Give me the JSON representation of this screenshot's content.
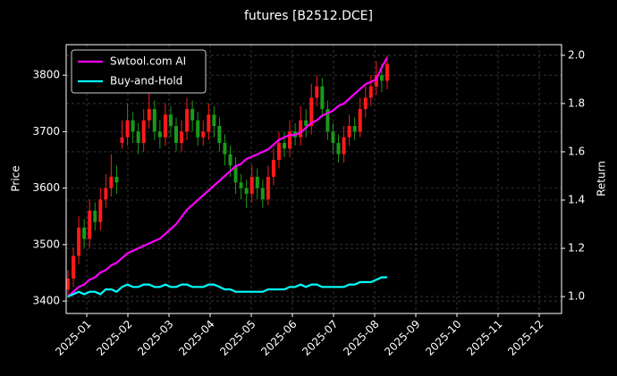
{
  "chart_data": {
    "type": "candlestick",
    "title": "futures [B2512.DCE]",
    "ylabel": "Price",
    "y2label": "Return",
    "xticks": [
      "2025-01",
      "2025-02",
      "2025-03",
      "2025-04",
      "2025-05",
      "2025-06",
      "2025-07",
      "2025-08",
      "2025-09",
      "2025-10",
      "2025-11",
      "2025-12"
    ],
    "ylim": [
      3378,
      3854
    ],
    "yticks": [
      3400,
      3500,
      3600,
      3700,
      3800
    ],
    "y2lim": [
      0.93,
      2.044
    ],
    "y2ticks": [
      {
        "value": 1,
        "label": "1.0"
      },
      1.2,
      1.4,
      1.6,
      1.8,
      {
        "value": 2,
        "label": "2.0"
      }
    ],
    "grid": true,
    "legend": "upper left",
    "up_color": "#ff1a1a",
    "down_color": "#1a9a1a",
    "open": [
      3420,
      3440,
      3480,
      3530,
      3510,
      3560,
      3540,
      3580,
      3600,
      3620,
      3680,
      3690,
      3720,
      3700,
      3680,
      3720,
      3740,
      3700,
      3690,
      3730,
      3710,
      3680,
      3700,
      3740,
      3720,
      3690,
      3700,
      3730,
      3710,
      3680,
      3660,
      3640,
      3610,
      3600,
      3590,
      3620,
      3600,
      3580,
      3620,
      3650,
      3680,
      3670,
      3700,
      3690,
      3720,
      3710,
      3760,
      3780,
      3740,
      3700,
      3680,
      3660,
      3690,
      3710,
      3700,
      3740,
      3760,
      3780,
      3800,
      3790
    ],
    "high": [
      3455,
      3495,
      3550,
      3545,
      3580,
      3575,
      3600,
      3625,
      3660,
      3640,
      3720,
      3750,
      3735,
      3715,
      3740,
      3770,
      3755,
      3720,
      3750,
      3745,
      3725,
      3720,
      3760,
      3755,
      3735,
      3720,
      3750,
      3745,
      3725,
      3695,
      3675,
      3655,
      3625,
      3615,
      3640,
      3635,
      3615,
      3640,
      3670,
      3700,
      3700,
      3720,
      3715,
      3745,
      3740,
      3785,
      3800,
      3795,
      3755,
      3715,
      3695,
      3710,
      3730,
      3725,
      3760,
      3780,
      3800,
      3825,
      3820,
      3835
    ],
    "low": [
      3405,
      3425,
      3465,
      3495,
      3495,
      3525,
      3525,
      3565,
      3585,
      3590,
      3670,
      3675,
      3680,
      3660,
      3665,
      3705,
      3685,
      3670,
      3675,
      3690,
      3665,
      3665,
      3685,
      3700,
      3675,
      3675,
      3685,
      3690,
      3665,
      3640,
      3620,
      3590,
      3580,
      3565,
      3575,
      3580,
      3565,
      3570,
      3605,
      3635,
      3655,
      3655,
      3675,
      3675,
      3690,
      3695,
      3745,
      3725,
      3685,
      3660,
      3645,
      3645,
      3675,
      3685,
      3690,
      3725,
      3745,
      3765,
      3770,
      3775
    ],
    "close": [
      3440,
      3480,
      3530,
      3510,
      3560,
      3540,
      3580,
      3600,
      3620,
      3610,
      3690,
      3720,
      3700,
      3680,
      3720,
      3740,
      3700,
      3690,
      3730,
      3710,
      3680,
      3700,
      3740,
      3720,
      3690,
      3700,
      3730,
      3710,
      3680,
      3660,
      3640,
      3610,
      3600,
      3590,
      3620,
      3600,
      3580,
      3620,
      3650,
      3680,
      3670,
      3700,
      3690,
      3720,
      3710,
      3760,
      3780,
      3740,
      3700,
      3680,
      3660,
      3690,
      3710,
      3700,
      3740,
      3760,
      3780,
      3800,
      3790,
      3820
    ],
    "series": [
      {
        "name": "Swtool.com AI",
        "color": "#ff00ff",
        "axis": "y2",
        "values": [
          1.0,
          1.02,
          1.04,
          1.05,
          1.07,
          1.08,
          1.1,
          1.11,
          1.13,
          1.14,
          1.16,
          1.18,
          1.19,
          1.2,
          1.21,
          1.22,
          1.23,
          1.24,
          1.26,
          1.28,
          1.3,
          1.33,
          1.36,
          1.38,
          1.4,
          1.42,
          1.44,
          1.46,
          1.48,
          1.5,
          1.52,
          1.54,
          1.55,
          1.57,
          1.58,
          1.59,
          1.6,
          1.61,
          1.63,
          1.65,
          1.66,
          1.67,
          1.67,
          1.68,
          1.7,
          1.72,
          1.73,
          1.75,
          1.76,
          1.77,
          1.79,
          1.8,
          1.82,
          1.84,
          1.86,
          1.88,
          1.89,
          1.9,
          1.95,
          1.99
        ]
      },
      {
        "name": "Buy-and-Hold",
        "color": "#00ffff",
        "axis": "y2",
        "values": [
          1.0,
          1.01,
          1.02,
          1.01,
          1.02,
          1.02,
          1.01,
          1.03,
          1.03,
          1.02,
          1.04,
          1.05,
          1.04,
          1.04,
          1.05,
          1.05,
          1.04,
          1.04,
          1.05,
          1.04,
          1.04,
          1.05,
          1.05,
          1.04,
          1.04,
          1.04,
          1.05,
          1.05,
          1.04,
          1.03,
          1.03,
          1.02,
          1.02,
          1.02,
          1.02,
          1.02,
          1.02,
          1.03,
          1.03,
          1.03,
          1.03,
          1.04,
          1.04,
          1.05,
          1.04,
          1.05,
          1.05,
          1.04,
          1.04,
          1.04,
          1.04,
          1.04,
          1.05,
          1.05,
          1.06,
          1.06,
          1.06,
          1.07,
          1.08,
          1.08
        ]
      }
    ]
  }
}
